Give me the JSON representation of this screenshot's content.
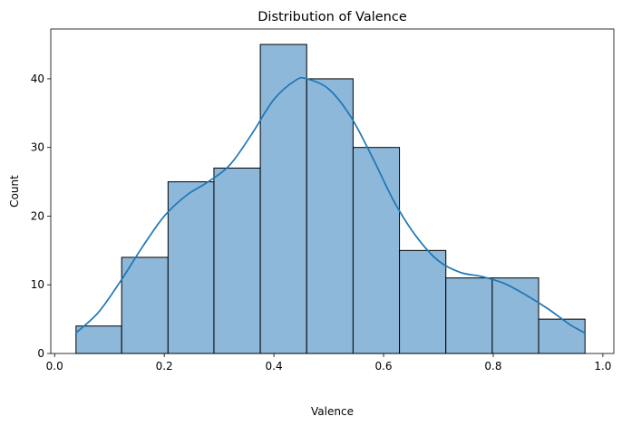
{
  "chart_data": {
    "type": "bar",
    "title": "Distribution of Valence",
    "xlabel": "Valence",
    "ylabel": "Count",
    "xlim": [
      -0.007,
      1.02
    ],
    "ylim": [
      0,
      47.25
    ],
    "x_ticks": [
      0.0,
      0.2,
      0.4,
      0.6,
      0.8,
      1.0
    ],
    "x_tick_labels": [
      "0.0",
      "0.2",
      "0.4",
      "0.6",
      "0.8",
      "1.0"
    ],
    "y_ticks": [
      0,
      10,
      20,
      30,
      40
    ],
    "y_tick_labels": [
      "0",
      "10",
      "20",
      "30",
      "40"
    ],
    "bins": [
      {
        "x0": 0.039,
        "x1": 0.1223,
        "count": 4
      },
      {
        "x0": 0.1223,
        "x1": 0.2069,
        "count": 14
      },
      {
        "x0": 0.2069,
        "x1": 0.2906,
        "count": 25
      },
      {
        "x0": 0.2906,
        "x1": 0.3752,
        "count": 27
      },
      {
        "x0": 0.3752,
        "x1": 0.4598,
        "count": 45
      },
      {
        "x0": 0.4598,
        "x1": 0.5444,
        "count": 40
      },
      {
        "x0": 0.5444,
        "x1": 0.629,
        "count": 30
      },
      {
        "x0": 0.629,
        "x1": 0.7136,
        "count": 15
      },
      {
        "x0": 0.7136,
        "x1": 0.7982,
        "count": 11
      },
      {
        "x0": 0.7982,
        "x1": 0.8828,
        "count": 11
      },
      {
        "x0": 0.8828,
        "x1": 0.9674,
        "count": 5
      }
    ],
    "kde_curve": {
      "x": [
        0.039,
        0.08,
        0.12,
        0.16,
        0.2,
        0.24,
        0.28,
        0.32,
        0.36,
        0.4,
        0.44,
        0.46,
        0.5,
        0.54,
        0.58,
        0.62,
        0.66,
        0.7,
        0.74,
        0.78,
        0.82,
        0.86,
        0.9,
        0.94,
        0.967
      ],
      "y": [
        3,
        6,
        10.5,
        15.5,
        20,
        23,
        25,
        27.5,
        32,
        37,
        39.8,
        40,
        38.5,
        34.5,
        28.5,
        22,
        17,
        13.5,
        11.8,
        11.2,
        10.2,
        8.5,
        6.5,
        4.2,
        3
      ]
    },
    "bar_fill": "#8db8da",
    "bar_edge": "#000000",
    "curve_color": "#1f77b4",
    "grid": false,
    "legend": "none"
  }
}
